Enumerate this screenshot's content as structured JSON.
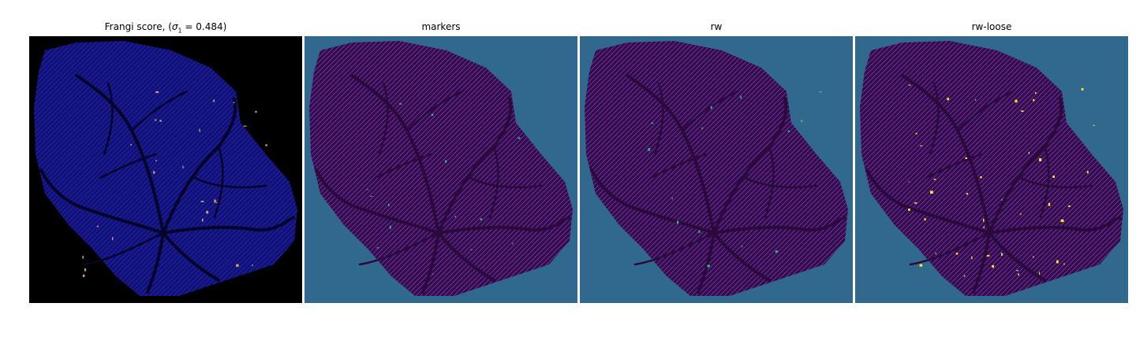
{
  "figure": {
    "panels": [
      {
        "title_prefix": "Frangi score, (",
        "title_sigma": "σ",
        "title_sub": "1",
        "title_suffix": " = 0.484)",
        "background": "#000000",
        "tissue": "#10107a",
        "vessel": "#05052a",
        "highlight": "#c8a070"
      },
      {
        "title": "markers",
        "background": "#31688e",
        "tissue": "#440154",
        "vessel": "#2a0a3a",
        "highlight": "#35b779"
      },
      {
        "title": "rw",
        "background": "#31688e",
        "tissue": "#440154",
        "vessel": "#2a0a3a",
        "highlight": "#35b779"
      },
      {
        "title": "rw-loose",
        "background": "#31688e",
        "tissue": "#440154",
        "vessel": "#2a0a3a",
        "highlight": "#fde725"
      }
    ]
  }
}
